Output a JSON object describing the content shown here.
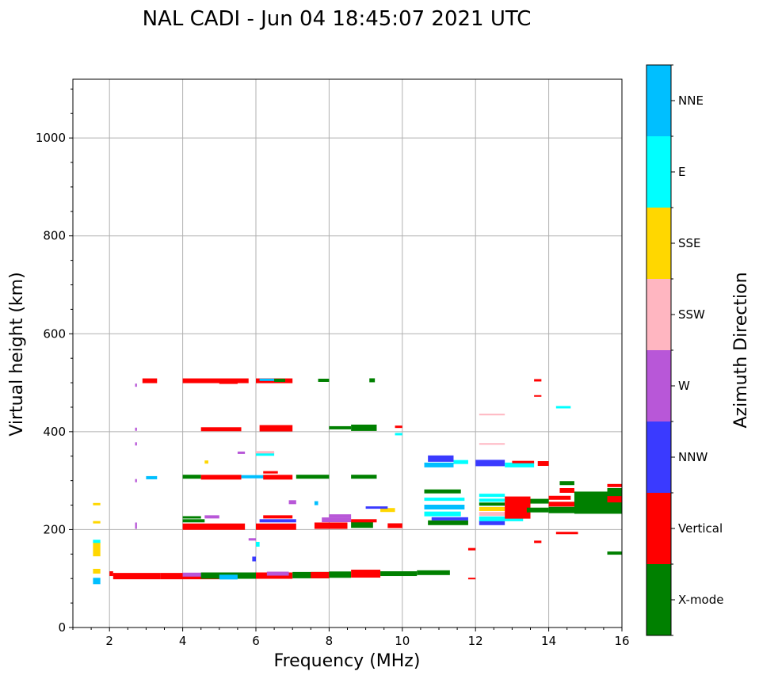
{
  "chart_data": {
    "type": "scatter",
    "title": "NAL CADI - Jun 04 18:45:07 2021 UTC",
    "xlabel": "Frequency (MHz)",
    "ylabel": "Virtual height (km)",
    "xlim": [
      1,
      16
    ],
    "ylim": [
      0,
      1120
    ],
    "xticks": [
      2,
      4,
      6,
      8,
      10,
      12,
      14,
      16
    ],
    "yticks": [
      0,
      200,
      400,
      600,
      800,
      1000
    ],
    "grid": true,
    "colorbar": {
      "label": "Azimuth Direction",
      "categories": [
        {
          "name": "X-mode",
          "color": "#008000"
        },
        {
          "name": "Vertical",
          "color": "#ff0000"
        },
        {
          "name": "NNW",
          "color": "#3a3aff"
        },
        {
          "name": "W",
          "color": "#b857d8"
        },
        {
          "name": "SSW",
          "color": "#ffb6c1"
        },
        {
          "name": "SSE",
          "color": "#ffd700"
        },
        {
          "name": "E",
          "color": "#00ffff"
        },
        {
          "name": "NNE",
          "color": "#00bfff"
        }
      ]
    },
    "echoes": [
      {
        "f0": 2.1,
        "f1": 3.4,
        "h": 105,
        "dir": "Vertical",
        "thick": 8
      },
      {
        "f0": 3.4,
        "f1": 5.0,
        "h": 105,
        "dir": "Vertical",
        "thick": 8
      },
      {
        "f0": 4.0,
        "f1": 4.8,
        "h": 108,
        "dir": "W",
        "thick": 5
      },
      {
        "f0": 4.5,
        "f1": 6.2,
        "h": 106,
        "dir": "X-mode",
        "thick": 8
      },
      {
        "f0": 5.0,
        "f1": 5.5,
        "h": 103,
        "dir": "NNE",
        "thick": 6
      },
      {
        "f0": 6.0,
        "f1": 7.0,
        "h": 106,
        "dir": "Vertical",
        "thick": 8
      },
      {
        "f0": 6.3,
        "f1": 6.9,
        "h": 110,
        "dir": "W",
        "thick": 5
      },
      {
        "f0": 7.0,
        "f1": 8.0,
        "h": 107,
        "dir": "X-mode",
        "thick": 8
      },
      {
        "f0": 7.5,
        "f1": 8.0,
        "h": 107,
        "dir": "Vertical",
        "thick": 8
      },
      {
        "f0": 8.0,
        "f1": 8.6,
        "h": 108,
        "dir": "X-mode",
        "thick": 8
      },
      {
        "f0": 8.6,
        "f1": 9.4,
        "h": 110,
        "dir": "Vertical",
        "thick": 10
      },
      {
        "f0": 9.4,
        "f1": 10.4,
        "h": 110,
        "dir": "X-mode",
        "thick": 6
      },
      {
        "f0": 10.4,
        "f1": 11.3,
        "h": 112,
        "dir": "X-mode",
        "thick": 6
      },
      {
        "f0": 1.55,
        "f1": 1.75,
        "h": 95,
        "dir": "NNE",
        "thick": 8
      },
      {
        "f0": 1.55,
        "f1": 1.75,
        "h": 115,
        "dir": "SSE",
        "thick": 6
      },
      {
        "f0": 1.55,
        "f1": 1.75,
        "h": 160,
        "dir": "SSE",
        "thick": 18
      },
      {
        "f0": 1.55,
        "f1": 1.75,
        "h": 176,
        "dir": "E",
        "thick": 4
      },
      {
        "f0": 1.55,
        "f1": 1.75,
        "h": 215,
        "dir": "SSE",
        "thick": 3
      },
      {
        "f0": 1.55,
        "f1": 1.75,
        "h": 252,
        "dir": "SSE",
        "thick": 3
      },
      {
        "f0": 4.0,
        "f1": 5.7,
        "h": 206,
        "dir": "Vertical",
        "thick": 8
      },
      {
        "f0": 4.0,
        "f1": 4.6,
        "h": 218,
        "dir": "X-mode",
        "thick": 4
      },
      {
        "f0": 4.0,
        "f1": 4.5,
        "h": 225,
        "dir": "X-mode",
        "thick": 3
      },
      {
        "f0": 4.6,
        "f1": 5.0,
        "h": 226,
        "dir": "W",
        "thick": 4
      },
      {
        "f0": 6.0,
        "f1": 7.1,
        "h": 206,
        "dir": "Vertical",
        "thick": 8
      },
      {
        "f0": 6.1,
        "f1": 7.1,
        "h": 218,
        "dir": "NNW",
        "thick": 4
      },
      {
        "f0": 6.2,
        "f1": 7.0,
        "h": 226,
        "dir": "Vertical",
        "thick": 4
      },
      {
        "f0": 7.6,
        "f1": 8.5,
        "h": 208,
        "dir": "Vertical",
        "thick": 8
      },
      {
        "f0": 7.8,
        "f1": 8.6,
        "h": 220,
        "dir": "W",
        "thick": 6
      },
      {
        "f0": 8.0,
        "f1": 8.6,
        "h": 228,
        "dir": "W",
        "thick": 4
      },
      {
        "f0": 8.6,
        "f1": 9.2,
        "h": 210,
        "dir": "X-mode",
        "thick": 8
      },
      {
        "f0": 8.6,
        "f1": 9.3,
        "h": 218,
        "dir": "Vertical",
        "thick": 4
      },
      {
        "f0": 9.4,
        "f1": 9.8,
        "h": 240,
        "dir": "SSE",
        "thick": 5
      },
      {
        "f0": 9.6,
        "f1": 10.0,
        "h": 208,
        "dir": "Vertical",
        "thick": 6
      },
      {
        "f0": 9.0,
        "f1": 9.6,
        "h": 245,
        "dir": "NNW",
        "thick": 3
      },
      {
        "f0": 10.7,
        "f1": 11.8,
        "h": 214,
        "dir": "X-mode",
        "thick": 6
      },
      {
        "f0": 10.8,
        "f1": 11.8,
        "h": 222,
        "dir": "NNW",
        "thick": 4
      },
      {
        "f0": 10.6,
        "f1": 11.6,
        "h": 232,
        "dir": "E",
        "thick": 6
      },
      {
        "f0": 10.6,
        "f1": 11.7,
        "h": 246,
        "dir": "NNE",
        "thick": 6
      },
      {
        "f0": 10.6,
        "f1": 11.7,
        "h": 262,
        "dir": "E",
        "thick": 4
      },
      {
        "f0": 10.6,
        "f1": 11.6,
        "h": 278,
        "dir": "X-mode",
        "thick": 5
      },
      {
        "f0": 12.1,
        "f1": 12.8,
        "h": 214,
        "dir": "NNW",
        "thick": 6
      },
      {
        "f0": 12.1,
        "f1": 13.3,
        "h": 222,
        "dir": "E",
        "thick": 6
      },
      {
        "f0": 12.1,
        "f1": 12.8,
        "h": 232,
        "dir": "SSW",
        "thick": 5
      },
      {
        "f0": 12.1,
        "f1": 12.8,
        "h": 242,
        "dir": "SSE",
        "thick": 5
      },
      {
        "f0": 12.1,
        "f1": 12.8,
        "h": 252,
        "dir": "X-mode",
        "thick": 4
      },
      {
        "f0": 12.1,
        "f1": 12.8,
        "h": 260,
        "dir": "E",
        "thick": 4
      },
      {
        "f0": 12.1,
        "f1": 12.8,
        "h": 270,
        "dir": "E",
        "thick": 4
      },
      {
        "f0": 12.8,
        "f1": 13.5,
        "h": 245,
        "dir": "Vertical",
        "thick": 28
      },
      {
        "f0": 13.4,
        "f1": 14.0,
        "h": 240,
        "dir": "X-mode",
        "thick": 6
      },
      {
        "f0": 13.5,
        "f1": 14.0,
        "h": 258,
        "dir": "X-mode",
        "thick": 6
      },
      {
        "f0": 14.0,
        "f1": 14.8,
        "h": 240,
        "dir": "X-mode",
        "thick": 8
      },
      {
        "f0": 14.0,
        "f1": 14.8,
        "h": 252,
        "dir": "Vertical",
        "thick": 6
      },
      {
        "f0": 14.0,
        "f1": 14.6,
        "h": 265,
        "dir": "Vertical",
        "thick": 5
      },
      {
        "f0": 14.3,
        "f1": 14.7,
        "h": 280,
        "dir": "Vertical",
        "thick": 6
      },
      {
        "f0": 14.3,
        "f1": 14.7,
        "h": 295,
        "dir": "X-mode",
        "thick": 5
      },
      {
        "f0": 14.7,
        "f1": 16.0,
        "h": 255,
        "dir": "X-mode",
        "thick": 28
      },
      {
        "f0": 15.6,
        "f1": 16.0,
        "h": 262,
        "dir": "Vertical",
        "thick": 8
      },
      {
        "f0": 15.6,
        "f1": 16.0,
        "h": 280,
        "dir": "X-mode",
        "thick": 6
      },
      {
        "f0": 15.6,
        "f1": 16.0,
        "h": 290,
        "dir": "Vertical",
        "thick": 4
      },
      {
        "f0": 15.6,
        "f1": 16.0,
        "h": 152,
        "dir": "X-mode",
        "thick": 4
      },
      {
        "f0": 14.2,
        "f1": 14.8,
        "h": 193,
        "dir": "Vertical",
        "thick": 3
      },
      {
        "f0": 13.6,
        "f1": 13.8,
        "h": 175,
        "dir": "Vertical",
        "thick": 3
      },
      {
        "f0": 11.8,
        "f1": 12.0,
        "h": 160,
        "dir": "Vertical",
        "thick": 3
      },
      {
        "f0": 11.8,
        "f1": 12.0,
        "h": 100,
        "dir": "Vertical",
        "thick": 2
      },
      {
        "f0": 3.0,
        "f1": 3.3,
        "h": 306,
        "dir": "NNE",
        "thick": 4
      },
      {
        "f0": 4.0,
        "f1": 4.5,
        "h": 308,
        "dir": "X-mode",
        "thick": 5
      },
      {
        "f0": 4.5,
        "f1": 5.6,
        "h": 307,
        "dir": "Vertical",
        "thick": 6
      },
      {
        "f0": 5.6,
        "f1": 6.3,
        "h": 308,
        "dir": "NNE",
        "thick": 4
      },
      {
        "f0": 6.2,
        "f1": 7.0,
        "h": 307,
        "dir": "Vertical",
        "thick": 6
      },
      {
        "f0": 6.2,
        "f1": 6.6,
        "h": 317,
        "dir": "Vertical",
        "thick": 3
      },
      {
        "f0": 7.1,
        "f1": 8.0,
        "h": 308,
        "dir": "X-mode",
        "thick": 5
      },
      {
        "f0": 8.6,
        "f1": 9.3,
        "h": 308,
        "dir": "X-mode",
        "thick": 5
      },
      {
        "f0": 10.6,
        "f1": 11.4,
        "h": 332,
        "dir": "NNE",
        "thick": 6
      },
      {
        "f0": 10.7,
        "f1": 11.4,
        "h": 345,
        "dir": "NNW",
        "thick": 8
      },
      {
        "f0": 11.4,
        "f1": 11.8,
        "h": 338,
        "dir": "E",
        "thick": 5
      },
      {
        "f0": 12.0,
        "f1": 12.8,
        "h": 336,
        "dir": "NNW",
        "thick": 8
      },
      {
        "f0": 12.8,
        "f1": 13.6,
        "h": 332,
        "dir": "E",
        "thick": 6
      },
      {
        "f0": 13.0,
        "f1": 13.6,
        "h": 338,
        "dir": "Vertical",
        "thick": 3
      },
      {
        "f0": 13.7,
        "f1": 14.0,
        "h": 335,
        "dir": "Vertical",
        "thick": 6
      },
      {
        "f0": 6.0,
        "f1": 6.5,
        "h": 354,
        "dir": "E",
        "thick": 4
      },
      {
        "f0": 6.0,
        "f1": 6.5,
        "h": 358,
        "dir": "SSW",
        "thick": 3
      },
      {
        "f0": 12.1,
        "f1": 12.8,
        "h": 375,
        "dir": "SSW",
        "thick": 2
      },
      {
        "f0": 12.1,
        "f1": 12.8,
        "h": 435,
        "dir": "SSW",
        "thick": 2
      },
      {
        "f0": 4.5,
        "f1": 5.6,
        "h": 405,
        "dir": "Vertical",
        "thick": 5
      },
      {
        "f0": 6.1,
        "f1": 7.0,
        "h": 407,
        "dir": "Vertical",
        "thick": 8
      },
      {
        "f0": 8.0,
        "f1": 8.6,
        "h": 408,
        "dir": "X-mode",
        "thick": 4
      },
      {
        "f0": 8.6,
        "f1": 9.3,
        "h": 408,
        "dir": "X-mode",
        "thick": 8
      },
      {
        "f0": 9.8,
        "f1": 10.0,
        "h": 410,
        "dir": "Vertical",
        "thick": 3
      },
      {
        "f0": 9.8,
        "f1": 10.0,
        "h": 395,
        "dir": "E",
        "thick": 3
      },
      {
        "f0": 2.9,
        "f1": 3.3,
        "h": 504,
        "dir": "Vertical",
        "thick": 6
      },
      {
        "f0": 4.0,
        "f1": 5.8,
        "h": 504,
        "dir": "Vertical",
        "thick": 6
      },
      {
        "f0": 5.0,
        "f1": 5.5,
        "h": 500,
        "dir": "Vertical",
        "thick": 3
      },
      {
        "f0": 6.0,
        "f1": 7.0,
        "h": 504,
        "dir": "Vertical",
        "thick": 6
      },
      {
        "f0": 6.1,
        "f1": 6.5,
        "h": 506,
        "dir": "NNE",
        "thick": 3
      },
      {
        "f0": 6.5,
        "f1": 6.8,
        "h": 505,
        "dir": "X-mode",
        "thick": 4
      },
      {
        "f0": 7.7,
        "f1": 8.0,
        "h": 505,
        "dir": "X-mode",
        "thick": 4
      },
      {
        "f0": 9.1,
        "f1": 9.25,
        "h": 505,
        "dir": "X-mode",
        "thick": 5
      },
      {
        "f0": 13.6,
        "f1": 13.8,
        "h": 505,
        "dir": "Vertical",
        "thick": 3
      },
      {
        "f0": 13.6,
        "f1": 13.8,
        "h": 473,
        "dir": "Vertical",
        "thick": 2
      },
      {
        "f0": 14.2,
        "f1": 14.6,
        "h": 450,
        "dir": "E",
        "thick": 3
      },
      {
        "f0": 2.7,
        "f1": 2.75,
        "h": 208,
        "dir": "W",
        "thick": 8
      },
      {
        "f0": 2.7,
        "f1": 2.75,
        "h": 300,
        "dir": "W",
        "thick": 4
      },
      {
        "f0": 2.7,
        "f1": 2.75,
        "h": 375,
        "dir": "W",
        "thick": 4
      },
      {
        "f0": 2.7,
        "f1": 2.75,
        "h": 405,
        "dir": "W",
        "thick": 4
      },
      {
        "f0": 2.7,
        "f1": 2.75,
        "h": 495,
        "dir": "W",
        "thick": 4
      },
      {
        "f0": 5.8,
        "f1": 6.0,
        "h": 180,
        "dir": "W",
        "thick": 3
      },
      {
        "f0": 6.0,
        "f1": 6.1,
        "h": 170,
        "dir": "E",
        "thick": 6
      },
      {
        "f0": 5.9,
        "f1": 6.0,
        "h": 140,
        "dir": "NNW",
        "thick": 6
      },
      {
        "f0": 5.5,
        "f1": 5.7,
        "h": 357,
        "dir": "W",
        "thick": 3
      },
      {
        "f0": 4.6,
        "f1": 4.7,
        "h": 338,
        "dir": "SSE",
        "thick": 4
      },
      {
        "f0": 6.9,
        "f1": 7.1,
        "h": 256,
        "dir": "W",
        "thick": 5
      },
      {
        "f0": 7.6,
        "f1": 7.7,
        "h": 254,
        "dir": "NNE",
        "thick": 5
      },
      {
        "f0": 2.0,
        "f1": 2.1,
        "h": 110,
        "dir": "Vertical",
        "thick": 6
      }
    ]
  }
}
